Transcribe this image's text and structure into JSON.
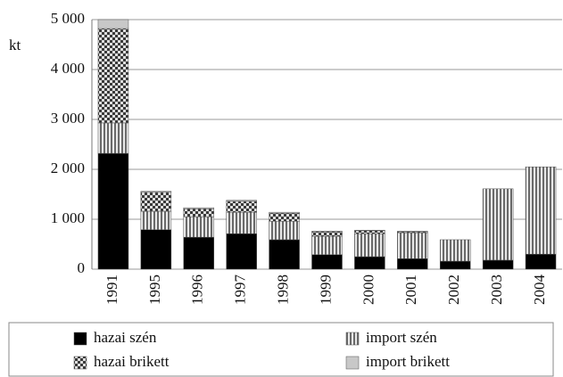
{
  "chart_data": {
    "type": "stacked_bar",
    "y_axis_label": "kt",
    "categories": [
      "1991",
      "1995",
      "1996",
      "1997",
      "1998",
      "1999",
      "2000",
      "2001",
      "2002",
      "2003",
      "2004"
    ],
    "series": [
      {
        "name": "hazai szén",
        "color": "#000000",
        "values": [
          2320,
          790,
          640,
          710,
          590,
          290,
          250,
          210,
          160,
          180,
          300
        ]
      },
      {
        "name": "import szén",
        "color": "#6a6a6a",
        "values": [
          610,
          370,
          410,
          430,
          370,
          370,
          460,
          520,
          430,
          1430,
          1750
        ]
      },
      {
        "name": "hazai brikett",
        "color": "#3a3a3a",
        "values": [
          1890,
          380,
          160,
          220,
          160,
          90,
          60,
          20,
          0,
          0,
          0
        ]
      },
      {
        "name": "import brikett",
        "color": "#c8c8c8",
        "values": [
          180,
          20,
          20,
          20,
          20,
          10,
          10,
          10,
          0,
          0,
          0
        ]
      }
    ],
    "ylim": [
      0,
      5000
    ],
    "yticks": [
      0,
      {
        "value": 1000,
        "label": "1 000"
      },
      {
        "value": 2000,
        "label": "2 000"
      },
      {
        "value": 3000,
        "label": "3 000"
      },
      {
        "value": 4000,
        "label": "4 000"
      },
      {
        "value": 5000,
        "label": "5 000"
      }
    ],
    "grid": true,
    "legend": "bottom"
  }
}
